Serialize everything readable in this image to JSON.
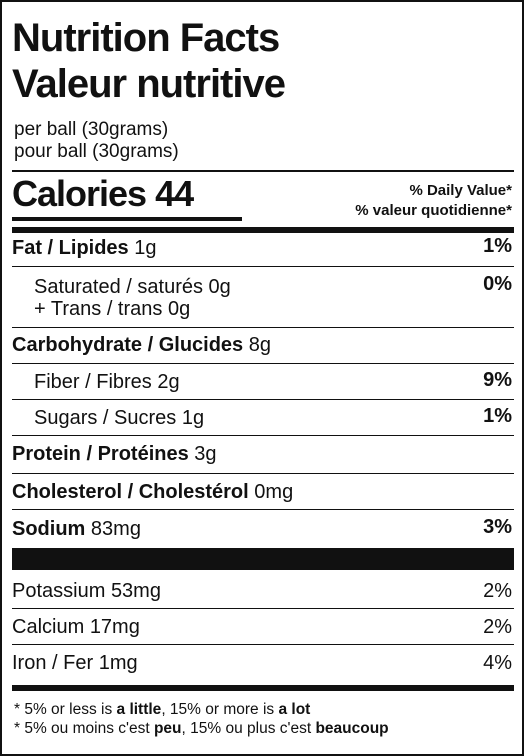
{
  "title_en": "Nutrition Facts",
  "title_fr": "Valeur nutritive",
  "serving_en": "per ball (30grams)",
  "serving_fr": "pour ball (30grams)",
  "calories": {
    "label": "Calories",
    "value": "44"
  },
  "daily_value": {
    "en": "% Daily Value*",
    "fr": "% valeur quotidienne*"
  },
  "nutrients": {
    "fat": {
      "label": "Fat / Lipides",
      "amount": "1g",
      "pct": "1%"
    },
    "saturated": {
      "label": "Saturated / saturés",
      "amount": "0g",
      "pct": "0%"
    },
    "trans": {
      "label": "+ Trans / trans",
      "amount": "0g"
    },
    "carb": {
      "label": "Carbohydrate / Glucides",
      "amount": "8g"
    },
    "fiber": {
      "label": "Fiber / Fibres",
      "amount": "2g",
      "pct": "9%"
    },
    "sugars": {
      "label": "Sugars / Sucres",
      "amount": "1g",
      "pct": "1%"
    },
    "protein": {
      "label": "Protein / Protéines",
      "amount": "3g"
    },
    "cholesterol": {
      "label": "Cholesterol / Cholestérol",
      "amount": "0mg"
    },
    "sodium": {
      "label": "Sodium",
      "amount": "83mg",
      "pct": "3%"
    }
  },
  "minerals": {
    "potassium": {
      "label": "Potassium",
      "amount": "53mg",
      "pct": "2%"
    },
    "calcium": {
      "label": "Calcium",
      "amount": "17mg",
      "pct": "2%"
    },
    "iron": {
      "label": "Iron / Fer",
      "amount": "1mg",
      "pct": "4%"
    }
  },
  "footnote_en": {
    "p1": "* 5% or less is ",
    "w1": "a little",
    "p2": ", 15% or more is ",
    "w2": "a lot"
  },
  "footnote_fr": {
    "p1": "* 5% ou moins c'est ",
    "w1": "peu",
    "p2": ", 15% ou plus c'est ",
    "w2": "beaucoup"
  }
}
